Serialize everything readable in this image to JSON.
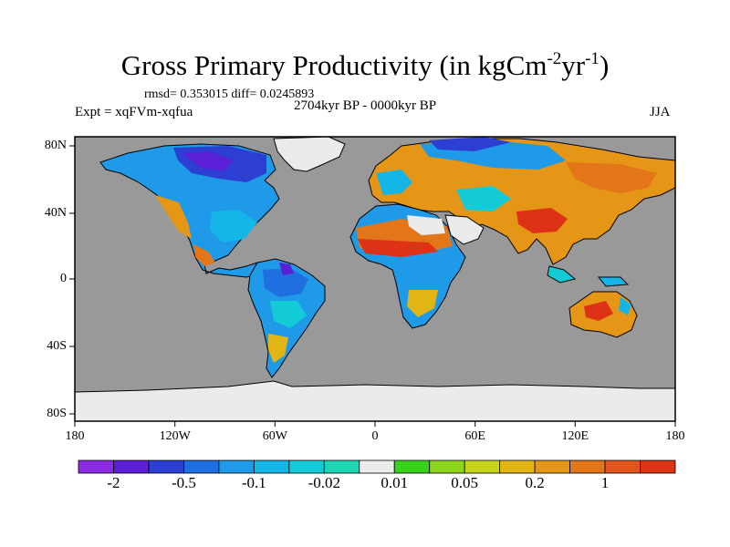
{
  "title": {
    "main": "Gross Primary Productivity (in kgCm",
    "exp1": "-2",
    "mid": "yr",
    "exp2": "-1",
    "end": ")"
  },
  "stats": "rmsd= 0.353015  diff= 0.0245893",
  "expt": "Expt = xqFVm-xqfua",
  "period": "2704kyr BP - 0000kyr BP",
  "season": "JJA",
  "lat_labels": [
    "80N",
    "40N",
    "0",
    "40S",
    "80S"
  ],
  "lon_labels": [
    "180",
    "120W",
    "60W",
    "0",
    "60E",
    "120E",
    "180"
  ],
  "colorbar": {
    "colors": [
      "#8a2be2",
      "#5a1fd6",
      "#2d3fd2",
      "#1f6fe0",
      "#1e9ae8",
      "#14b6e8",
      "#12cbd6",
      "#1fd6b2",
      "#ececec",
      "#38d21a",
      "#8bd61c",
      "#c6d41a",
      "#e0b514",
      "#e69616",
      "#e4761a",
      "#e2561c",
      "#de3216"
    ],
    "labels": [
      "-2",
      "-0.5",
      "-0.1",
      "-0.02",
      "0.01",
      "0.05",
      "0.2",
      "1"
    ]
  },
  "colors": {
    "ocean": "#999999",
    "ice": "#ebebeb"
  }
}
